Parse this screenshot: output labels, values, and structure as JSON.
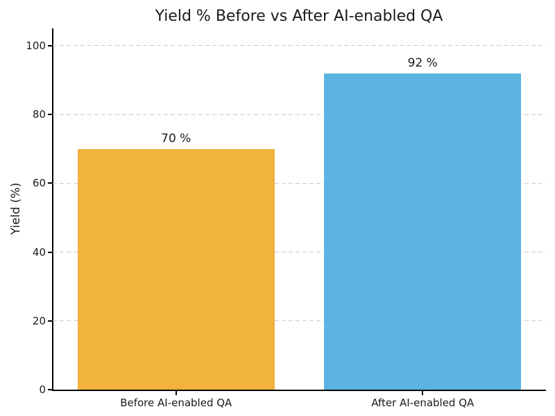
{
  "figure": {
    "background": "#ffffff",
    "title_color": "#1a1a1a",
    "axis_color": "#000000",
    "gridline_color": "#cccccc"
  },
  "chart_data": {
    "type": "bar",
    "title": "Yield % Before vs After AI-enabled QA",
    "xlabel": "",
    "ylabel": "Yield (%)",
    "categories": [
      "Before AI-enabled QA",
      "After AI-enabled QA"
    ],
    "values": [
      70,
      92
    ],
    "value_labels": [
      "70 %",
      "92 %"
    ],
    "bar_colors": [
      "#F2B23E",
      "#5BB4E2"
    ],
    "ylim": [
      0,
      105
    ],
    "yticks": [
      0,
      20,
      40,
      60,
      80,
      100
    ],
    "grid": "horizontal-dashed",
    "legend": "none",
    "bar_width_ratio": 0.8
  }
}
